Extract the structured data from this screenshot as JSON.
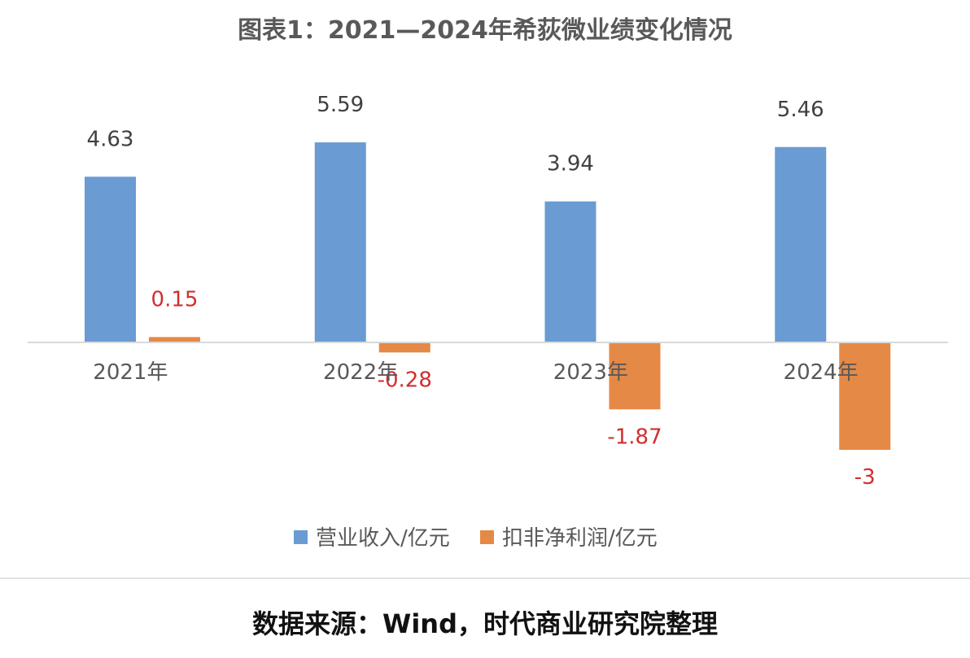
{
  "chart_data": {
    "type": "bar",
    "title": "图表1：2021—2024年希荻微业绩变化情况",
    "categories": [
      "2021年",
      "2022年",
      "2023年",
      "2024年"
    ],
    "series": [
      {
        "name": "营业收入/亿元",
        "values": [
          4.63,
          5.59,
          3.94,
          5.46
        ],
        "labels": [
          "4.63",
          "5.59",
          "3.94",
          "5.46"
        ],
        "color": "#6a9bd3",
        "label_color": "#404040"
      },
      {
        "name": "扣非净利润/亿元",
        "values": [
          0.15,
          -0.28,
          -1.87,
          -3
        ],
        "labels": [
          "0.15",
          "-0.28",
          "-1.87",
          "-3"
        ],
        "color": "#e58946",
        "label_color": "#d12f2f"
      }
    ],
    "ylim": [
      -4.6,
      7.2
    ],
    "grid": false,
    "legend_position": "bottom",
    "xlabel": "",
    "ylabel": ""
  },
  "source_note": "数据来源：Wind，时代商业研究院整理",
  "colors": {
    "axis": "#d9d9d9",
    "title": "#595959",
    "tick_label": "#595959"
  }
}
